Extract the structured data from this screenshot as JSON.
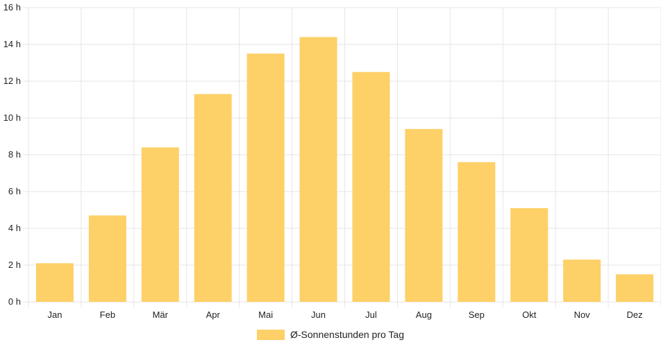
{
  "chart_data": {
    "type": "bar",
    "categories": [
      "Jan",
      "Feb",
      "Mär",
      "Apr",
      "Mai",
      "Jun",
      "Jul",
      "Aug",
      "Sep",
      "Okt",
      "Nov",
      "Dez"
    ],
    "series": [
      {
        "name": "Ø-Sonnenstunden pro Tag",
        "values": [
          2.1,
          4.7,
          8.4,
          11.3,
          13.5,
          14.4,
          12.5,
          9.4,
          7.6,
          5.1,
          2.3,
          1.5
        ],
        "color": "#fdd068"
      }
    ],
    "y_ticks": [
      "0 h",
      "2 h",
      "4 h",
      "6 h",
      "8 h",
      "10 h",
      "12 h",
      "14 h",
      "16 h"
    ],
    "ylim": [
      0,
      16
    ],
    "grid": true,
    "legend_position": "bottom",
    "colors": {
      "bar": "#fdd068",
      "grid": "#e5e5e5",
      "text": "#222222"
    }
  }
}
